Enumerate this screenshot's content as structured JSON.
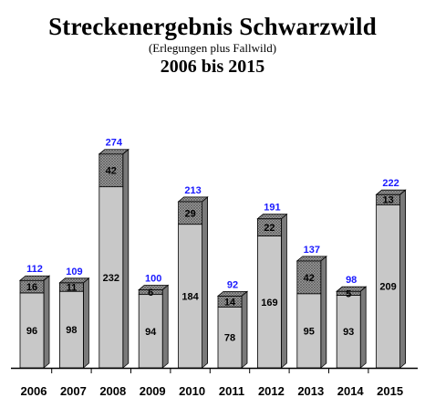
{
  "header": {
    "title": "Streckenergebnis Schwarzwild",
    "subtitle": "(Erlegungen plus Fallwild)",
    "period": "2006 bis 2015"
  },
  "colors": {
    "bar_fill": "#c8c8c8",
    "bar_shadow": "#7a7a7a",
    "hatch": "#606060",
    "total_label": "#1a1aff"
  },
  "chart_data": {
    "type": "bar",
    "stacked": true,
    "categories": [
      "2006",
      "2007",
      "2008",
      "2009",
      "2010",
      "2011",
      "2012",
      "2013",
      "2014",
      "2015"
    ],
    "series": [
      {
        "values": [
          96,
          98,
          232,
          94,
          184,
          78,
          169,
          95,
          93,
          209
        ]
      },
      {
        "values": [
          16,
          11,
          42,
          6,
          29,
          14,
          22,
          42,
          5,
          13
        ]
      }
    ],
    "totals": [
      112,
      109,
      274,
      100,
      213,
      92,
      191,
      137,
      98,
      222
    ],
    "ylim": [
      0,
      280
    ],
    "grid": false,
    "legend": "none"
  }
}
